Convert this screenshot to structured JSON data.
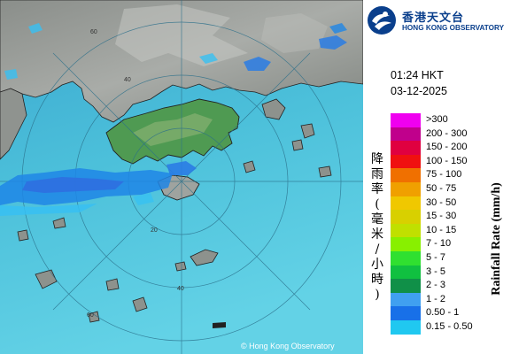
{
  "observatory": {
    "name_zh": "香港天文台",
    "name_en": "HONG KONG OBSERVATORY"
  },
  "timestamp": {
    "time": "01:24 HKT",
    "date": "03-12-2025"
  },
  "legend": {
    "title_zh": [
      "降",
      "雨",
      "率",
      "(",
      "毫",
      "米",
      "/",
      "小",
      "時",
      ")"
    ],
    "title_en": "Rainfall Rate (mm/h)",
    "items": [
      {
        "label": ">300",
        "color": "#f000f0"
      },
      {
        "label": "200 - 300",
        "color": "#c0008c"
      },
      {
        "label": "150 - 200",
        "color": "#e00040"
      },
      {
        "label": "100 - 150",
        "color": "#f01010"
      },
      {
        "label": "75 - 100",
        "color": "#f07000"
      },
      {
        "label": "50 - 75",
        "color": "#f0a000"
      },
      {
        "label": "30 - 50",
        "color": "#f0c800"
      },
      {
        "label": "15 - 30",
        "color": "#d8d000"
      },
      {
        "label": "10 - 15",
        "color": "#c0e000"
      },
      {
        "label": "7 - 10",
        "color": "#88f000"
      },
      {
        "label": "5 - 7",
        "color": "#30e030"
      },
      {
        "label": "3 - 5",
        "color": "#10c040"
      },
      {
        "label": "2 - 3",
        "color": "#109048"
      },
      {
        "label": "1 - 2",
        "color": "#40a0f0"
      },
      {
        "label": "0.50 - 1",
        "color": "#1870e8"
      },
      {
        "label": "0.15 - 0.50",
        "color": "#20c8f0"
      }
    ]
  },
  "map": {
    "range_labels": [
      "60",
      "40",
      "20",
      "60",
      "40"
    ],
    "copyright": "© Hong Kong Observatory"
  }
}
